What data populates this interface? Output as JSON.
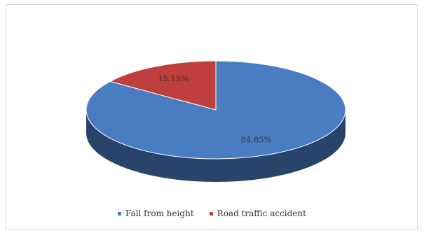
{
  "chart_data": {
    "type": "pie",
    "title": "",
    "categories": [
      "Fall from height",
      "Road traffic accident"
    ],
    "values": [
      84.85,
      15.15
    ],
    "data_labels": [
      "84.85%",
      "15.15%"
    ],
    "colors": [
      "#4a7cc2",
      "#bf3f3d"
    ],
    "style": "3d",
    "legend_position": "bottom"
  }
}
